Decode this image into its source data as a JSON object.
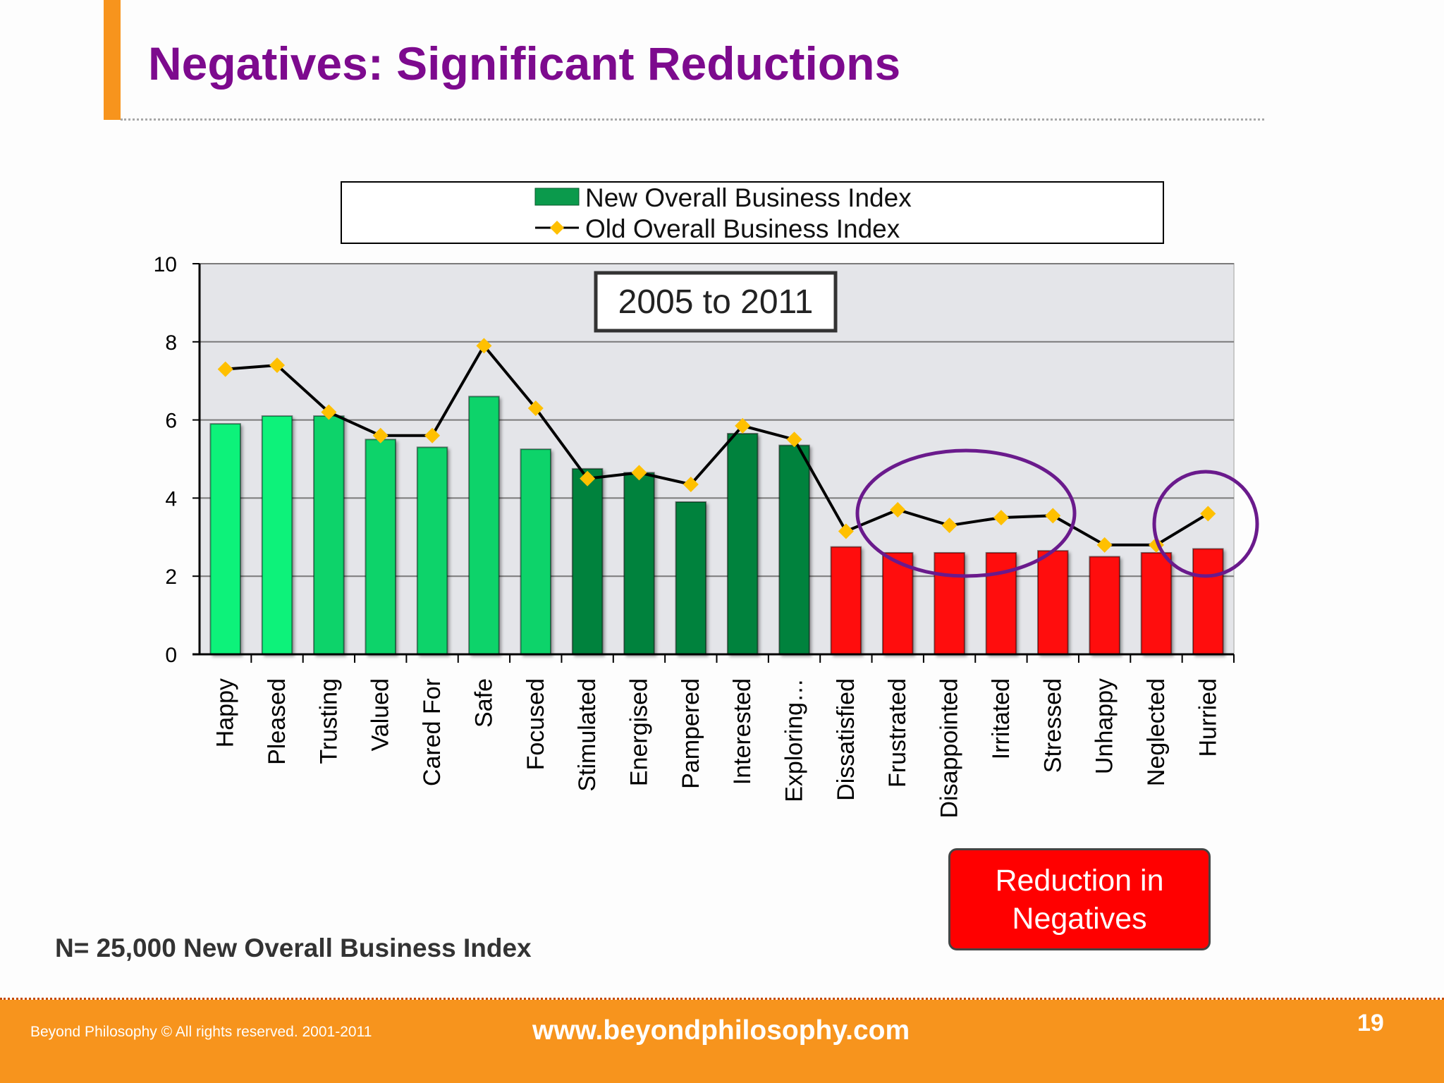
{
  "slide": {
    "title": "Negatives: Significant Reductions",
    "period_label": "2005 to 2011",
    "note": "N= 25,000 New Overall Business Index",
    "callout": "Reduction in Negatives",
    "footer_copyright": "Beyond Philosophy © All rights reserved. 2001-2011",
    "footer_url": "www.beyondphilosophy.com",
    "page_number": "19"
  },
  "chart_data": {
    "type": "bar",
    "title": "",
    "xlabel": "",
    "ylabel": "",
    "ylim": [
      0,
      10
    ],
    "yticks": [
      "0",
      "2",
      "4",
      "6",
      "8",
      "10"
    ],
    "grid": true,
    "legend_position": "top",
    "categories": [
      "Happy",
      "Pleased",
      "Trusting",
      "Valued",
      "Cared For",
      "Safe",
      "Focused",
      "Stimulated",
      "Energised",
      "Pampered",
      "Interested",
      "Exploring…",
      "Dissatisfied",
      "Frustrated",
      "Disappointed",
      "Irritated",
      "Stressed",
      "Unhappy",
      "Neglected",
      "Hurried"
    ],
    "series": [
      {
        "name": "New Overall Business Index",
        "type": "bar",
        "values": [
          5.9,
          6.1,
          6.1,
          5.5,
          5.3,
          6.6,
          5.25,
          4.75,
          4.65,
          3.9,
          5.65,
          5.35,
          2.75,
          2.6,
          2.6,
          2.6,
          2.65,
          2.5,
          2.6,
          2.7
        ],
        "colors": [
          "#08f27a",
          "#08f27a",
          "#0ad36b",
          "#0ad36b",
          "#0ad36b",
          "#0ad36b",
          "#0ad36b",
          "#05823d",
          "#05823d",
          "#05823d",
          "#05823d",
          "#05823d",
          "#ff0a0a",
          "#ff0a0a",
          "#ff0a0a",
          "#ff0a0a",
          "#ff0a0a",
          "#ff0a0a",
          "#ff0a0a",
          "#ff0a0a"
        ]
      },
      {
        "name": "Old Overall Business Index",
        "type": "line",
        "color": "#000000",
        "marker_color": "#ffc000",
        "values": [
          7.3,
          7.4,
          6.2,
          5.6,
          5.6,
          7.9,
          6.3,
          4.5,
          4.65,
          4.35,
          5.85,
          5.5,
          3.15,
          3.7,
          3.3,
          3.5,
          3.55,
          2.8,
          2.8,
          3.6
        ]
      }
    ]
  }
}
